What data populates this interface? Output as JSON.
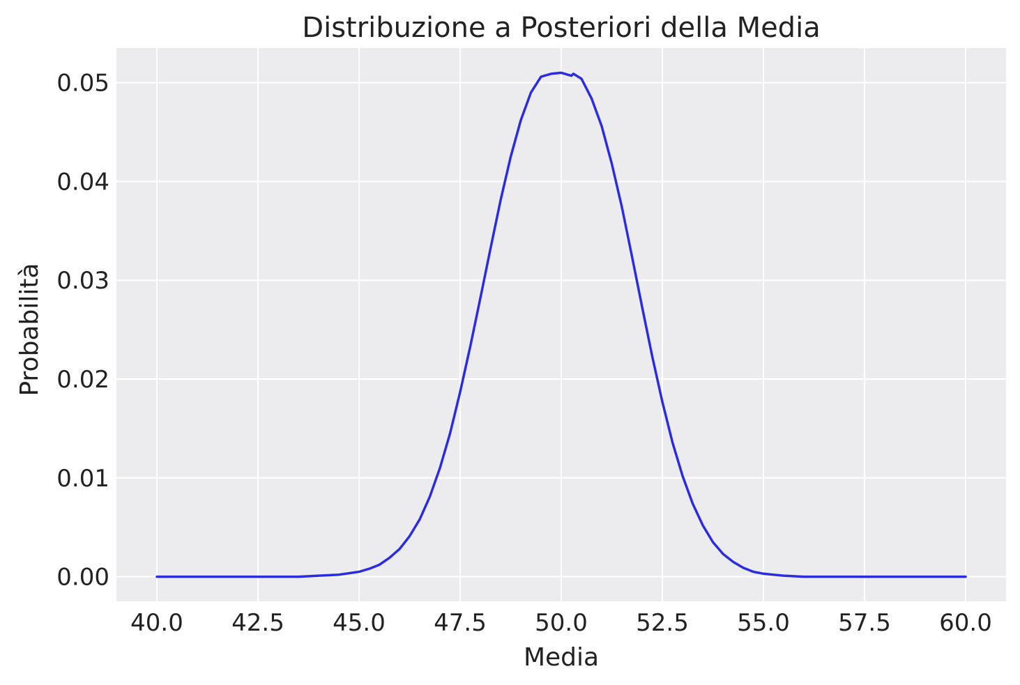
{
  "chart_data": {
    "type": "line",
    "title": "Distribuzione a Posteriori della Media",
    "xlabel": "Media",
    "ylabel": "Probabilità",
    "xlim": [
      39.0,
      61.0
    ],
    "ylim": [
      -0.0025,
      0.0535
    ],
    "x_ticks": [
      "40.0",
      "42.5",
      "45.0",
      "47.5",
      "50.0",
      "52.5",
      "55.0",
      "57.5",
      "60.0"
    ],
    "y_ticks": [
      "0.00",
      "0.01",
      "0.02",
      "0.03",
      "0.04",
      "0.05"
    ],
    "grid": true,
    "colors": {
      "background": "#ececee",
      "grid": "#ffffff",
      "line": "#2b2be0"
    },
    "series": [
      {
        "color": "#2b2be0",
        "x": [
          40.0,
          41.0,
          42.0,
          43.0,
          43.5,
          44.0,
          44.5,
          45.0,
          45.25,
          45.5,
          45.75,
          46.0,
          46.25,
          46.5,
          46.75,
          47.0,
          47.25,
          47.5,
          47.75,
          48.0,
          48.25,
          48.5,
          48.75,
          49.0,
          49.25,
          49.5,
          49.75,
          50.0,
          50.25,
          50.3,
          50.5,
          50.75,
          51.0,
          51.25,
          51.5,
          51.75,
          52.0,
          52.25,
          52.5,
          52.75,
          53.0,
          53.25,
          53.5,
          53.75,
          54.0,
          54.25,
          54.5,
          54.75,
          55.0,
          55.25,
          55.5,
          56.0,
          56.5,
          57.0,
          58.0,
          59.0,
          60.0
        ],
        "y": [
          0.0,
          0.0,
          0.0,
          0.0,
          0.0,
          0.0001,
          0.0002,
          0.0005,
          0.0008,
          0.0012,
          0.0019,
          0.0028,
          0.0041,
          0.0058,
          0.0081,
          0.011,
          0.0145,
          0.0187,
          0.0233,
          0.0282,
          0.0332,
          0.0381,
          0.0425,
          0.0462,
          0.049,
          0.0506,
          0.0509,
          0.051,
          0.0507,
          0.0509,
          0.0504,
          0.0484,
          0.0456,
          0.0418,
          0.0374,
          0.0324,
          0.0273,
          0.0223,
          0.0177,
          0.0136,
          0.0102,
          0.0074,
          0.0052,
          0.0035,
          0.0023,
          0.0015,
          0.0009,
          0.0005,
          0.0003,
          0.0002,
          0.0001,
          0.0,
          0.0,
          0.0,
          0.0,
          0.0,
          0.0
        ]
      }
    ]
  }
}
